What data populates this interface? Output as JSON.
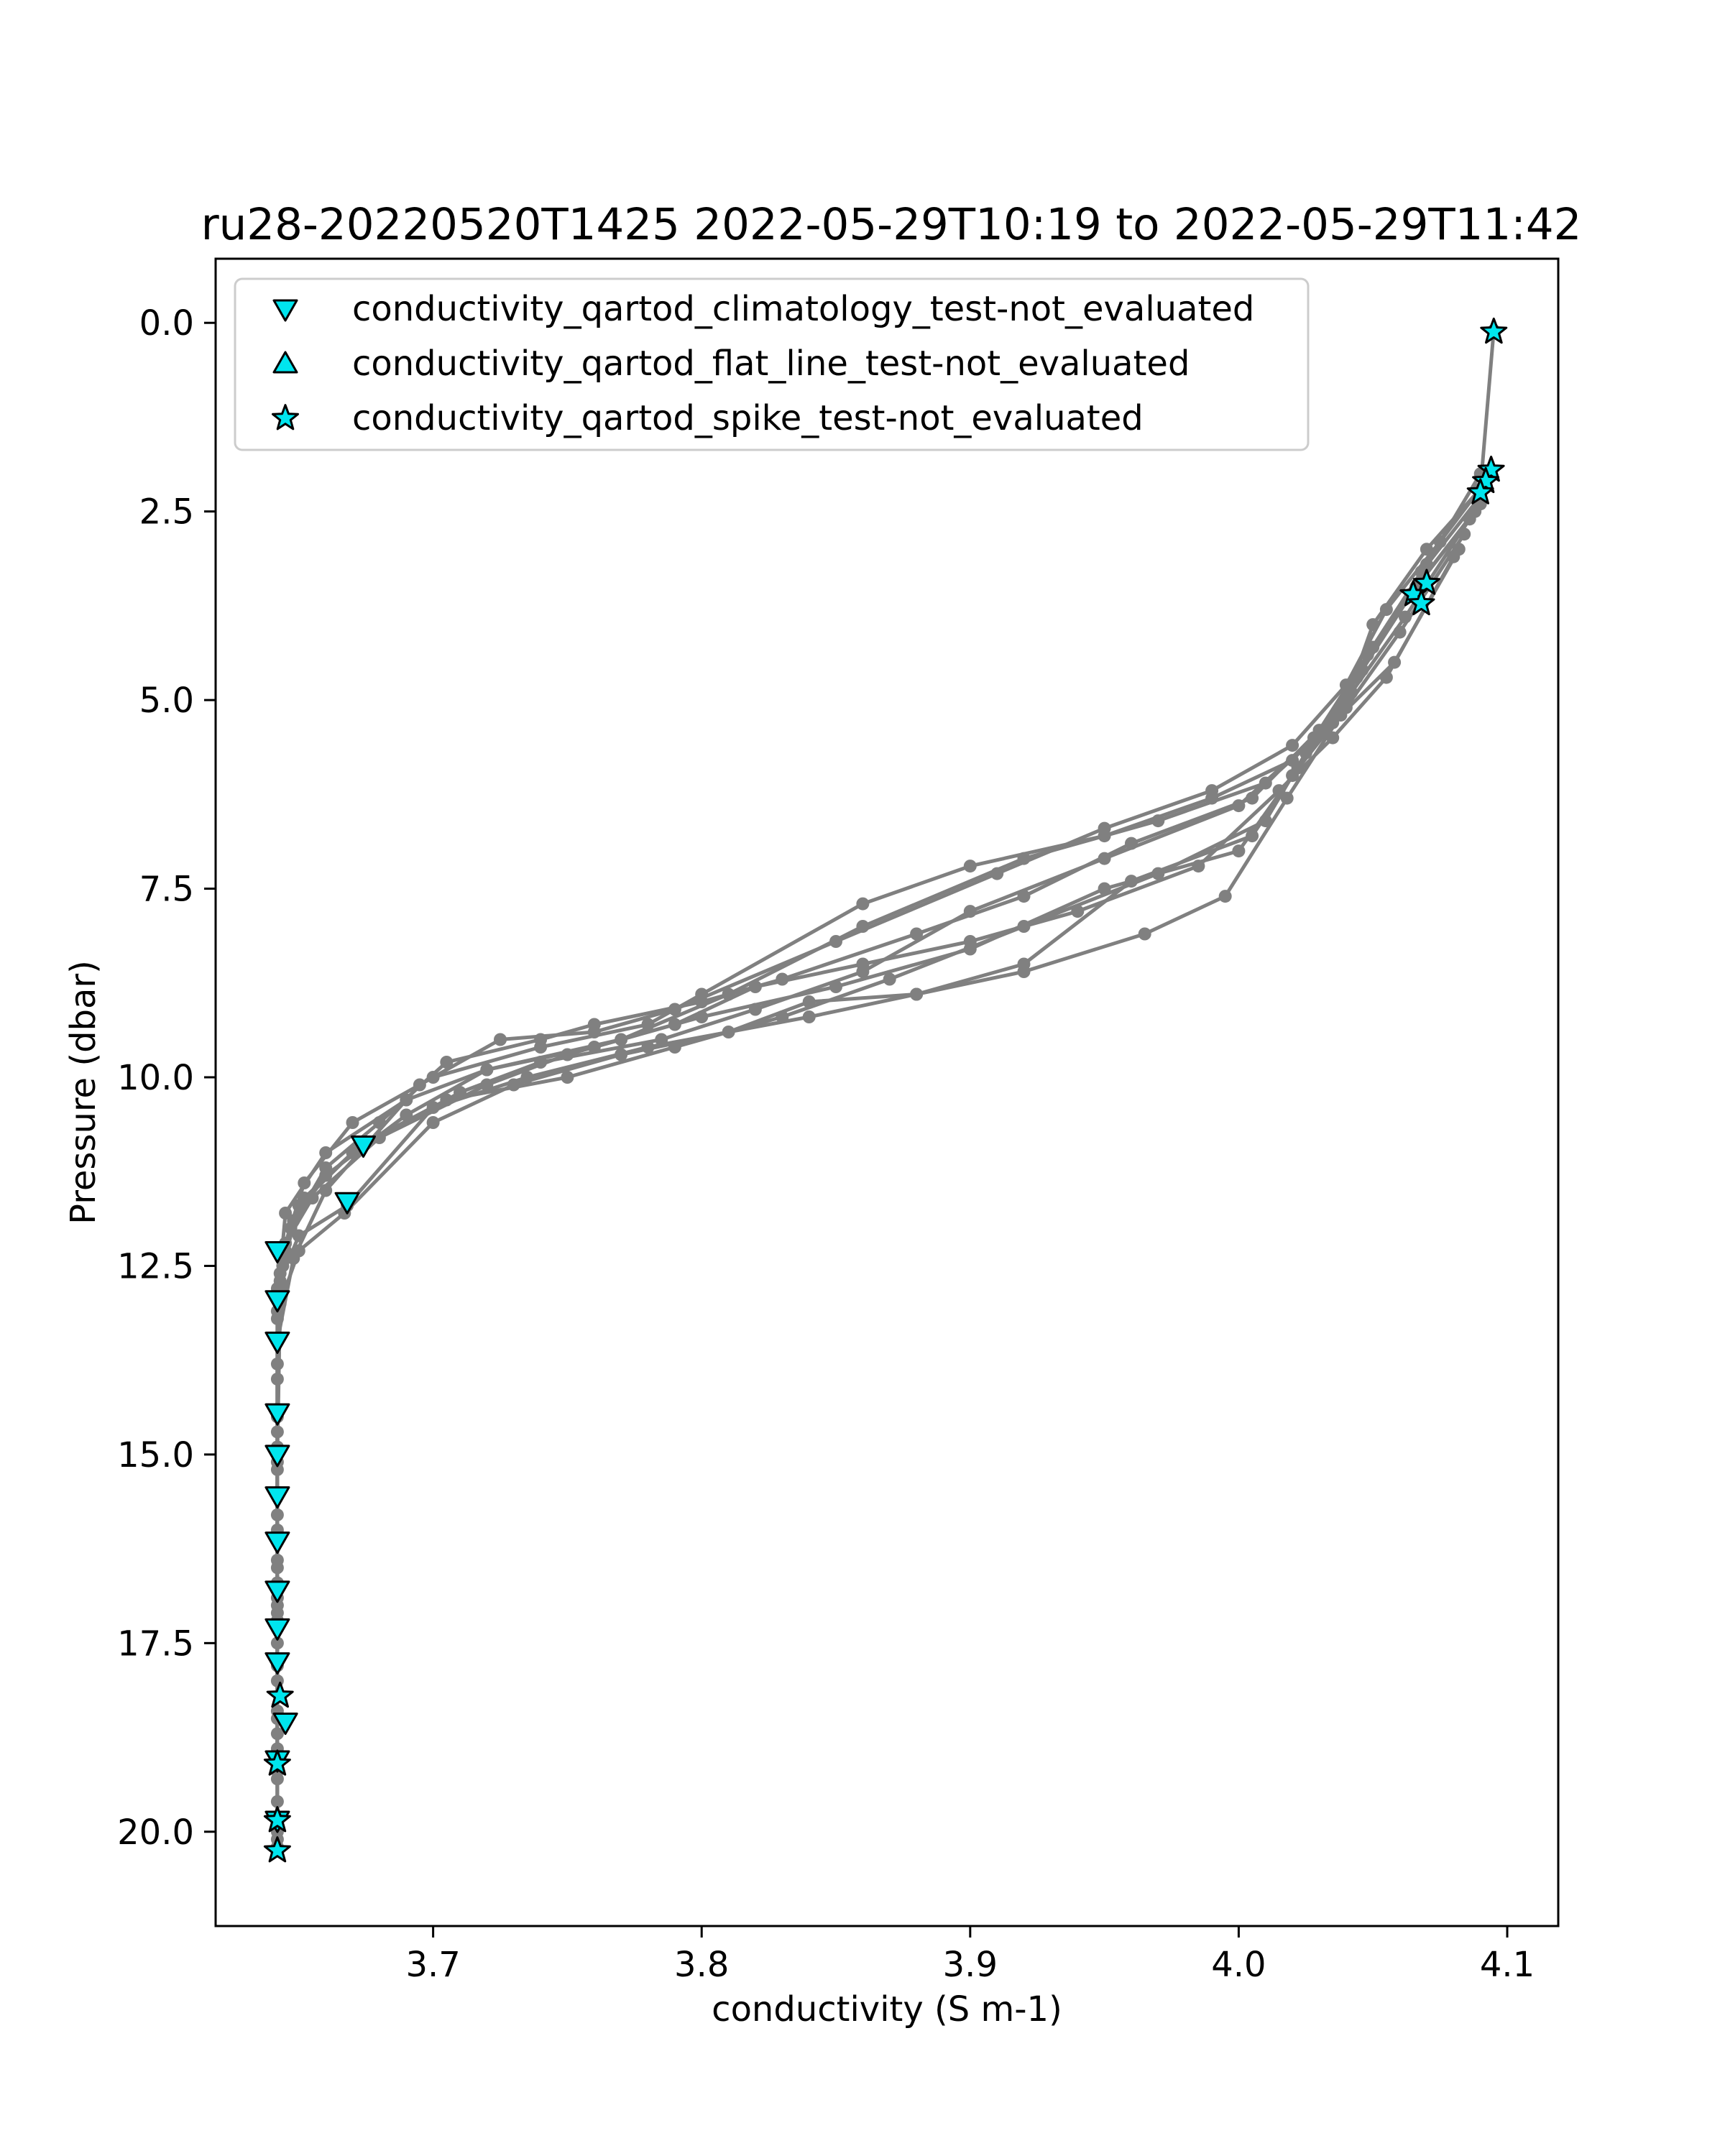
{
  "chart_data": {
    "type": "scatter",
    "title": "ru28-20220520T1425 2022-05-29T10:19 to 2022-05-29T11:42",
    "xlabel": "conductivity (S m-1)",
    "ylabel": "Pressure (dbar)",
    "xlim": [
      3.619,
      4.119
    ],
    "ylim": [
      21.25,
      -0.85
    ],
    "y_inverted": true,
    "grid": false,
    "legend_placement": "upper-left",
    "x_ticks": [
      "3.7",
      "3.8",
      "3.9",
      "4.0",
      "4.1"
    ],
    "y_ticks": [
      "0.0",
      "2.5",
      "5.0",
      "7.5",
      "10.0",
      "12.5",
      "15.0",
      "17.5",
      "20.0"
    ],
    "colors": {
      "profile_line": "#808080",
      "flag_fill": "#00e5ee",
      "flag_edge": "#000000"
    },
    "profiles": [
      [
        [
          4.095,
          0.1
        ],
        [
          4.09,
          2.2
        ],
        [
          4.07,
          3.0
        ],
        [
          4.05,
          4.0
        ],
        [
          4.04,
          5.0
        ],
        [
          4.02,
          5.8
        ],
        [
          3.99,
          6.3
        ],
        [
          3.95,
          6.8
        ],
        [
          3.9,
          7.2
        ],
        [
          3.86,
          7.7
        ],
        [
          3.8,
          8.9
        ],
        [
          3.78,
          9.3
        ],
        [
          3.74,
          9.6
        ],
        [
          3.7,
          10.0
        ],
        [
          3.67,
          10.6
        ],
        [
          3.652,
          11.4
        ],
        [
          3.645,
          12.2
        ],
        [
          3.643,
          13.0
        ],
        [
          3.642,
          15.0
        ],
        [
          3.642,
          17.0
        ],
        [
          3.642,
          19.0
        ],
        [
          3.642,
          20.2
        ]
      ],
      [
        [
          4.09,
          2.0
        ],
        [
          4.07,
          3.2
        ],
        [
          4.05,
          4.3
        ],
        [
          4.035,
          5.3
        ],
        [
          4.01,
          6.1
        ],
        [
          3.97,
          6.6
        ],
        [
          3.92,
          7.1
        ],
        [
          3.86,
          8.0
        ],
        [
          3.81,
          8.9
        ],
        [
          3.77,
          9.5
        ],
        [
          3.72,
          9.9
        ],
        [
          3.69,
          10.3
        ],
        [
          3.66,
          11.0
        ],
        [
          3.645,
          11.8
        ],
        [
          3.643,
          12.6
        ],
        [
          3.642,
          14.5
        ],
        [
          3.642,
          16.5
        ],
        [
          3.642,
          18.5
        ],
        [
          3.642,
          20.0
        ]
      ],
      [
        [
          4.092,
          2.1
        ],
        [
          4.075,
          2.9
        ],
        [
          4.055,
          3.8
        ],
        [
          4.04,
          4.8
        ],
        [
          4.02,
          5.6
        ],
        [
          3.99,
          6.2
        ],
        [
          3.95,
          6.7
        ],
        [
          3.91,
          7.3
        ],
        [
          3.85,
          8.2
        ],
        [
          3.79,
          9.1
        ],
        [
          3.76,
          9.4
        ],
        [
          3.725,
          9.5
        ],
        [
          3.695,
          10.1
        ],
        [
          3.66,
          11.5
        ],
        [
          3.648,
          12.4
        ],
        [
          3.642,
          13.5
        ],
        [
          3.642,
          15.5
        ],
        [
          3.642,
          17.5
        ],
        [
          3.642,
          19.3
        ]
      ],
      [
        [
          4.09,
          2.3
        ],
        [
          4.068,
          3.3
        ],
        [
          4.048,
          4.4
        ],
        [
          4.03,
          5.4
        ],
        [
          4.005,
          6.3
        ],
        [
          3.96,
          6.9
        ],
        [
          3.92,
          7.6
        ],
        [
          3.88,
          8.1
        ],
        [
          3.83,
          8.7
        ],
        [
          3.8,
          9.0
        ],
        [
          3.76,
          9.3
        ],
        [
          3.74,
          9.5
        ],
        [
          3.705,
          9.8
        ],
        [
          3.68,
          10.6
        ],
        [
          3.66,
          11.2
        ],
        [
          3.647,
          12.0
        ],
        [
          3.643,
          12.9
        ],
        [
          3.642,
          14.9
        ],
        [
          3.642,
          16.9
        ],
        [
          3.642,
          18.9
        ]
      ],
      [
        [
          4.09,
          2.4
        ],
        [
          4.066,
          3.5
        ],
        [
          4.046,
          4.6
        ],
        [
          4.028,
          5.5
        ],
        [
          4.0,
          6.4
        ],
        [
          3.95,
          7.1
        ],
        [
          3.9,
          7.8
        ],
        [
          3.86,
          8.6
        ],
        [
          3.82,
          9.1
        ],
        [
          3.785,
          9.5
        ],
        [
          3.74,
          9.8
        ],
        [
          3.71,
          10.2
        ],
        [
          3.67,
          11.0
        ],
        [
          3.65,
          11.7
        ],
        [
          3.644,
          12.5
        ],
        [
          3.642,
          14.0
        ],
        [
          3.642,
          16.0
        ],
        [
          3.642,
          18.0
        ],
        [
          3.642,
          19.8
        ]
      ],
      [
        [
          4.088,
          2.5
        ],
        [
          4.064,
          3.6
        ],
        [
          4.044,
          4.7
        ],
        [
          4.025,
          5.7
        ],
        [
          4.01,
          6.6
        ],
        [
          3.97,
          7.3
        ],
        [
          3.92,
          8.0
        ],
        [
          3.87,
          8.7
        ],
        [
          3.83,
          9.2
        ],
        [
          3.79,
          9.6
        ],
        [
          3.75,
          10.0
        ],
        [
          3.705,
          10.3
        ],
        [
          3.673,
          10.9
        ],
        [
          3.652,
          11.6
        ],
        [
          3.645,
          12.3
        ],
        [
          3.642,
          13.8
        ],
        [
          3.642,
          15.8
        ],
        [
          3.642,
          17.8
        ],
        [
          3.642,
          20.1
        ]
      ],
      [
        [
          4.086,
          2.6
        ],
        [
          4.062,
          3.9
        ],
        [
          4.042,
          4.9
        ],
        [
          4.022,
          5.9
        ],
        [
          4.005,
          6.8
        ],
        [
          3.96,
          7.4
        ],
        [
          3.92,
          8.5
        ],
        [
          3.88,
          8.9
        ],
        [
          3.84,
          9.2
        ],
        [
          3.78,
          9.6
        ],
        [
          3.735,
          10.0
        ],
        [
          3.7,
          10.4
        ],
        [
          3.668,
          11.7
        ],
        [
          3.65,
          12.1
        ],
        [
          3.643,
          12.7
        ],
        [
          3.642,
          14.7
        ],
        [
          3.642,
          16.7
        ],
        [
          3.642,
          18.7
        ],
        [
          3.642,
          19.9
        ]
      ],
      [
        [
          4.084,
          2.8
        ],
        [
          4.06,
          4.1
        ],
        [
          4.04,
          5.1
        ],
        [
          4.02,
          6.0
        ],
        [
          4.0,
          7.0
        ],
        [
          3.95,
          7.5
        ],
        [
          3.9,
          8.3
        ],
        [
          3.85,
          8.8
        ],
        [
          3.8,
          9.2
        ],
        [
          3.76,
          9.6
        ],
        [
          3.72,
          9.9
        ],
        [
          3.69,
          10.5
        ],
        [
          3.66,
          11.3
        ],
        [
          3.648,
          11.9
        ],
        [
          3.642,
          12.8
        ],
        [
          3.642,
          14.4
        ],
        [
          3.642,
          16.4
        ],
        [
          3.642,
          18.4
        ],
        [
          3.642,
          19.6
        ]
      ],
      [
        [
          4.082,
          3.0
        ],
        [
          4.058,
          4.5
        ],
        [
          4.038,
          5.2
        ],
        [
          4.018,
          6.3
        ],
        [
          3.995,
          7.6
        ],
        [
          3.965,
          8.1
        ],
        [
          3.92,
          8.6
        ],
        [
          3.88,
          8.9
        ],
        [
          3.84,
          9.0
        ],
        [
          3.81,
          9.4
        ],
        [
          3.77,
          9.7
        ],
        [
          3.73,
          10.1
        ],
        [
          3.7,
          10.6
        ],
        [
          3.667,
          11.8
        ],
        [
          3.65,
          12.3
        ],
        [
          3.642,
          13.1
        ],
        [
          3.642,
          15.1
        ],
        [
          3.642,
          17.1
        ],
        [
          3.642,
          19.1
        ]
      ],
      [
        [
          4.08,
          3.1
        ],
        [
          4.055,
          4.7
        ],
        [
          4.035,
          5.5
        ],
        [
          4.015,
          6.2
        ],
        [
          3.985,
          7.2
        ],
        [
          3.94,
          7.8
        ],
        [
          3.9,
          8.2
        ],
        [
          3.86,
          8.5
        ],
        [
          3.82,
          8.8
        ],
        [
          3.79,
          9.3
        ],
        [
          3.75,
          9.7
        ],
        [
          3.72,
          10.1
        ],
        [
          3.68,
          10.8
        ],
        [
          3.655,
          11.6
        ],
        [
          3.645,
          12.2
        ],
        [
          3.642,
          13.2
        ],
        [
          3.642,
          15.2
        ],
        [
          3.642,
          17.2
        ],
        [
          3.642,
          19.2
        ]
      ]
    ],
    "series": [
      {
        "name": "conductivity_qartod_climatology_test-not_evaluated",
        "marker": "triangle-down",
        "points": [
          [
            3.674,
            10.9
          ],
          [
            3.668,
            11.65
          ],
          [
            3.642,
            12.3
          ],
          [
            3.642,
            12.95
          ],
          [
            3.642,
            13.5
          ],
          [
            3.642,
            14.45
          ],
          [
            3.642,
            15.0
          ],
          [
            3.642,
            15.55
          ],
          [
            3.642,
            16.15
          ],
          [
            3.642,
            16.8
          ],
          [
            3.642,
            17.3
          ],
          [
            3.642,
            17.75
          ],
          [
            3.645,
            18.55
          ],
          [
            3.642,
            19.05
          ],
          [
            3.642,
            19.85
          ]
        ]
      },
      {
        "name": "conductivity_qartod_flat_line_test-not_evaluated",
        "marker": "triangle-up",
        "points": []
      },
      {
        "name": "conductivity_qartod_spike_test-not_evaluated",
        "marker": "star",
        "points": [
          [
            4.095,
            0.12
          ],
          [
            4.094,
            1.95
          ],
          [
            4.092,
            2.1
          ],
          [
            4.09,
            2.25
          ],
          [
            4.07,
            3.45
          ],
          [
            4.065,
            3.6
          ],
          [
            4.068,
            3.72
          ],
          [
            3.643,
            18.2
          ],
          [
            3.642,
            19.1
          ],
          [
            3.642,
            19.85
          ],
          [
            3.642,
            20.25
          ]
        ]
      }
    ]
  }
}
